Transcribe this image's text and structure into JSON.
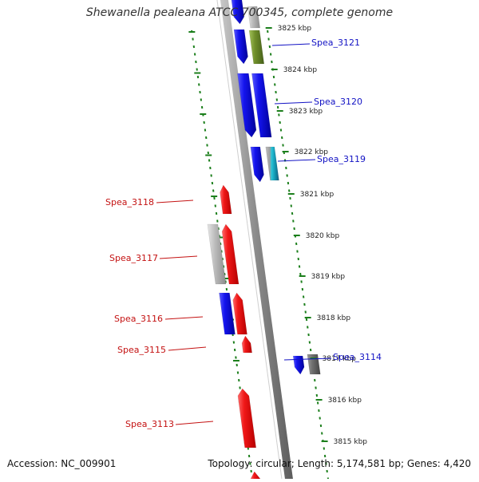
{
  "title": "Shewanella pealeana ATCC 700345, complete genome",
  "accession_text": "Accession: NC_009901",
  "summary_text": "Topology: circular; Length: 5,174,581 bp; Genes: 4,420",
  "colors": {
    "forward": "#e8141a",
    "reverse": "#1111e6",
    "other_gray": "#b8b8b8",
    "dark_gray": "#6e6e6e",
    "olive": "#6f8e2a",
    "cyan": "#27c3d8",
    "tick": "#1c7f1c",
    "red_label": "#c41212",
    "blue_label": "#1212c4",
    "backbone": "#888888"
  },
  "scale": {
    "ticks": [
      {
        "label": "3825 kbp"
      },
      {
        "label": "3824 kbp"
      },
      {
        "label": "3823 kbp"
      },
      {
        "label": "3822 kbp"
      },
      {
        "label": "3821 kbp"
      },
      {
        "label": "3820 kbp"
      },
      {
        "label": "3819 kbp"
      },
      {
        "label": "3818 kbp"
      },
      {
        "label": "3817 kbp"
      },
      {
        "label": "3816 kbp"
      },
      {
        "label": "3815 kbp"
      }
    ]
  },
  "genes": [
    {
      "label": "Spea_3121",
      "strand": "reverse",
      "side": "right"
    },
    {
      "label": "Spea_3120",
      "strand": "reverse",
      "side": "right"
    },
    {
      "label": "Spea_3119",
      "strand": "reverse",
      "side": "right"
    },
    {
      "label": "Spea_3118",
      "strand": "forward",
      "side": "left"
    },
    {
      "label": "Spea_3117",
      "strand": "forward",
      "side": "left"
    },
    {
      "label": "Spea_3116",
      "strand": "forward",
      "side": "left"
    },
    {
      "label": "Spea_3115",
      "strand": "forward",
      "side": "left"
    },
    {
      "label": "Spea_3114",
      "strand": "reverse",
      "side": "right"
    },
    {
      "label": "Spea_3113",
      "strand": "forward",
      "side": "left"
    }
  ]
}
